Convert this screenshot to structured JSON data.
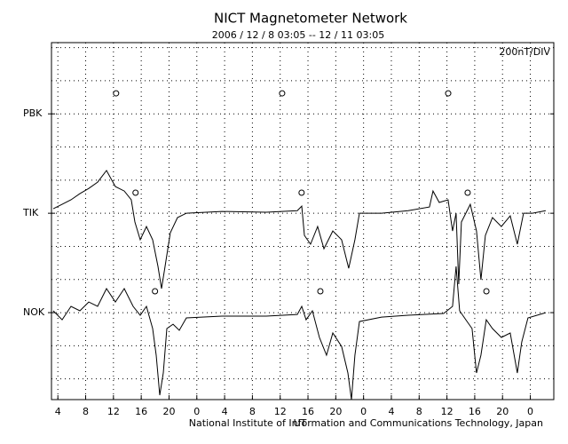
{
  "chart_data": {
    "type": "line",
    "title": "NICT Magnetometer Network",
    "subtitle": "2006 / 12 / 8  03:05 -- 12 / 11  03:05",
    "scale_label": "200nT/DIV",
    "x_label": "UT",
    "footer": "National Institute of Information and Communications Technology, Japan",
    "xlim": [
      0,
      72.3
    ],
    "ylim": [
      -525,
      1630
    ],
    "xticks": [
      {
        "value": 0.92,
        "label": "4"
      },
      {
        "value": 4.92,
        "label": "8"
      },
      {
        "value": 8.92,
        "label": "12"
      },
      {
        "value": 12.92,
        "label": "16"
      },
      {
        "value": 16.92,
        "label": "20"
      },
      {
        "value": 20.92,
        "label": "0"
      },
      {
        "value": 24.92,
        "label": "4"
      },
      {
        "value": 28.92,
        "label": "8"
      },
      {
        "value": 32.92,
        "label": "12"
      },
      {
        "value": 36.92,
        "label": "16"
      },
      {
        "value": 40.92,
        "label": "20"
      },
      {
        "value": 44.92,
        "label": "0"
      },
      {
        "value": 48.92,
        "label": "4"
      },
      {
        "value": 52.92,
        "label": "8"
      },
      {
        "value": 56.92,
        "label": "12"
      },
      {
        "value": 60.92,
        "label": "16"
      },
      {
        "value": 64.92,
        "label": "20"
      },
      {
        "value": 68.92,
        "label": "0"
      }
    ],
    "yticks": [
      {
        "value": 1200,
        "label": "PBK"
      },
      {
        "value": 600,
        "label": "TIK"
      },
      {
        "value": 0,
        "label": "NOK"
      }
    ],
    "ygrid": [
      -400,
      -200,
      0,
      200,
      400,
      600,
      800,
      1000,
      1200,
      1400,
      1600
    ],
    "color": "#000000",
    "markers": [
      {
        "x": [
          9.3,
          33.2,
          57.1
        ],
        "y": [
          1324,
          1324,
          1324
        ]
      },
      {
        "x": [
          12.1,
          36.0,
          59.9
        ],
        "y": [
          724,
          724,
          724
        ]
      },
      {
        "x": [
          14.9,
          38.7,
          62.6
        ],
        "y": [
          129,
          129,
          129
        ]
      }
    ],
    "series": [
      {
        "x": [
          0.26,
          1.53,
          2.81,
          4.09,
          5.36,
          6.64,
          7.92,
          9.2,
          10.47,
          11.49,
          12.01,
          12.77,
          13.67,
          14.56,
          15.33,
          15.84,
          16.35,
          17.11,
          18.14,
          19.41,
          24.52,
          30.91,
          35.38,
          36.02,
          36.4,
          37.29,
          38.31,
          39.21,
          40.49,
          41.76,
          42.78,
          43.68,
          44.32,
          47.51,
          51.34,
          54.41,
          54.92,
          55.81,
          57.09,
          57.73,
          58.24,
          58.62,
          59.0,
          60.28,
          61.17,
          61.81,
          62.45,
          63.47,
          64.75,
          66.03,
          67.05,
          67.94,
          69.22,
          71.14
        ],
        "values": [
          627,
          654,
          681,
          718,
          750,
          788,
          858,
          761,
          734,
          681,
          547,
          440,
          520,
          440,
          279,
          145,
          279,
          482,
          574,
          600,
          611,
          606,
          616,
          643,
          466,
          413,
          520,
          386,
          493,
          440,
          268,
          440,
          600,
          600,
          616,
          638,
          734,
          665,
          681,
          493,
          600,
          172,
          547,
          654,
          493,
          198,
          466,
          574,
          520,
          584,
          413,
          600,
          600,
          616
        ]
      },
      {
        "x": [
          0.26,
          1.53,
          2.81,
          4.09,
          5.36,
          6.64,
          7.92,
          9.2,
          10.47,
          11.75,
          12.77,
          13.67,
          14.56,
          15.07,
          15.58,
          16.09,
          16.6,
          17.5,
          18.39,
          19.41,
          24.52,
          30.91,
          35.38,
          36.02,
          36.65,
          37.55,
          38.57,
          39.59,
          40.49,
          41.76,
          42.66,
          43.17,
          43.68,
          44.32,
          47.51,
          51.34,
          56.45,
          57.73,
          58.24,
          58.75,
          59.64,
          60.54,
          61.17,
          61.81,
          62.58,
          63.47,
          64.75,
          66.03,
          67.05,
          67.69,
          68.58,
          71.14
        ],
        "values": [
          11,
          -43,
          38,
          11,
          64,
          38,
          145,
          64,
          145,
          38,
          -16,
          38,
          -96,
          -257,
          -498,
          -364,
          -96,
          -70,
          -107,
          -32,
          -21,
          -21,
          -11,
          38,
          -43,
          11,
          -150,
          -257,
          -123,
          -204,
          -364,
          -525,
          -257,
          -54,
          -27,
          -16,
          -5,
          38,
          279,
          11,
          -43,
          -96,
          -364,
          -257,
          -43,
          -96,
          -150,
          -123,
          -364,
          -177,
          -32,
          0
        ]
      }
    ]
  }
}
